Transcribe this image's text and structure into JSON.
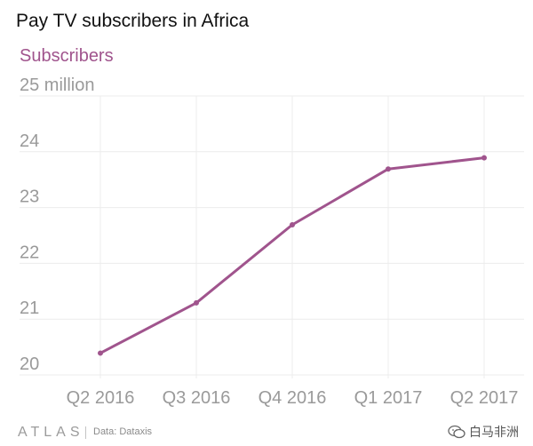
{
  "colors": {
    "accent": "#a0548d",
    "grid": "#ececec",
    "tick": "#9a9a9a",
    "title": "#111111"
  },
  "chart_data": {
    "type": "line",
    "title": "Pay TV subscribers in Africa",
    "ylabel": "Subscribers",
    "categories": [
      "Q2 2016",
      "Q3 2016",
      "Q4 2016",
      "Q1 2017",
      "Q2 2017"
    ],
    "series": [
      {
        "name": "Subscribers",
        "values": [
          20.2,
          21.1,
          22.5,
          23.5,
          23.7
        ]
      }
    ],
    "yticks": [
      20,
      21,
      22,
      23,
      24,
      25
    ],
    "ytick_labels": [
      "20",
      "21",
      "22",
      "23",
      "24",
      "25 million"
    ],
    "ylim": [
      20,
      25
    ],
    "grid": true,
    "legend": "none"
  },
  "footer": {
    "logo_icon": "atlas-logo-icon",
    "source": "Data:  Dataxis",
    "watermark_icon": "wechat-icon",
    "watermark": "白马非洲"
  }
}
